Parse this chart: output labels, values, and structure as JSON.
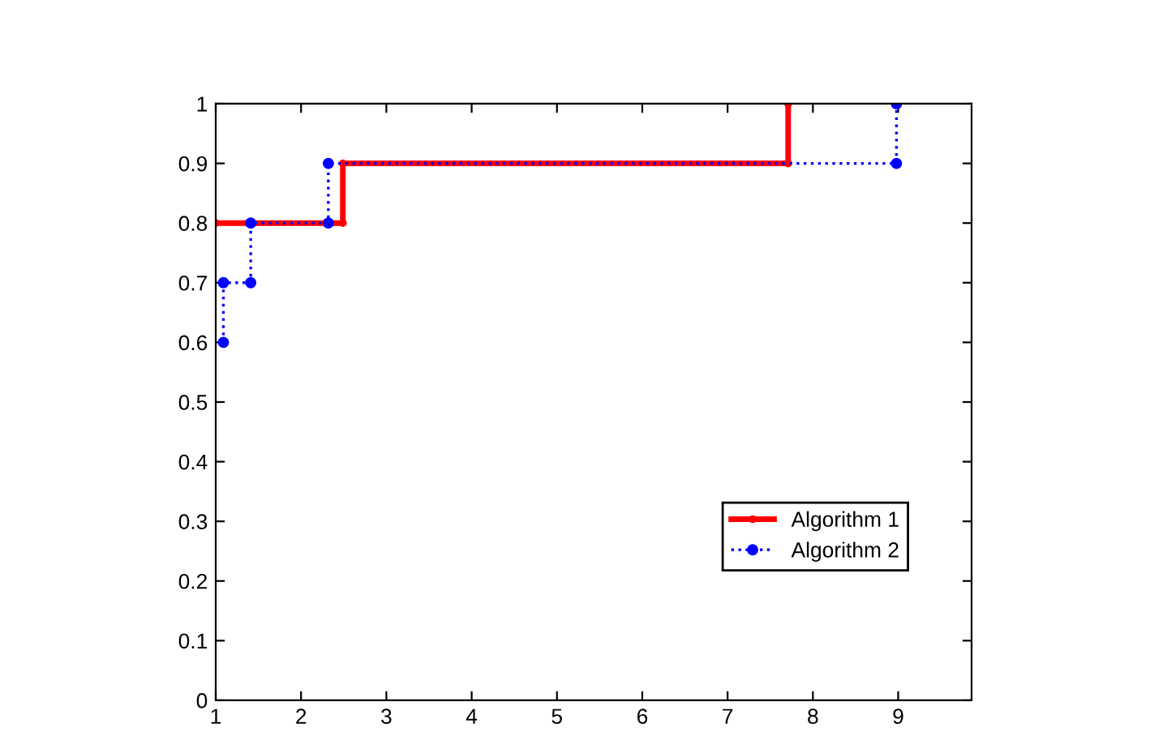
{
  "chart_data": {
    "type": "line",
    "xlim": [
      1,
      9.86
    ],
    "ylim": [
      0,
      1
    ],
    "xticks": [
      1,
      2,
      3,
      4,
      5,
      6,
      7,
      8,
      9
    ],
    "yticks": [
      0,
      0.1,
      0.2,
      0.3,
      0.4,
      0.5,
      0.6,
      0.7,
      0.8,
      0.9,
      1
    ],
    "grid": false,
    "legend": "bottom right",
    "marker": "circle",
    "series": [
      {
        "name": "Algorithm 1",
        "color": "#ff0000",
        "line_style": "solid",
        "x": [
          1,
          2.49,
          2.49,
          7.71,
          7.71
        ],
        "values": [
          0.8,
          0.8,
          0.9,
          0.9,
          1.0
        ]
      },
      {
        "name": "Algorithm 2",
        "color": "#0000ff",
        "line_style": "dotted",
        "x": [
          1.09,
          1.09,
          1.41,
          1.41,
          2.32,
          2.32,
          8.98,
          8.98
        ],
        "values": [
          0.6,
          0.7,
          0.7,
          0.8,
          0.8,
          0.9,
          0.9,
          1.0
        ]
      }
    ]
  }
}
